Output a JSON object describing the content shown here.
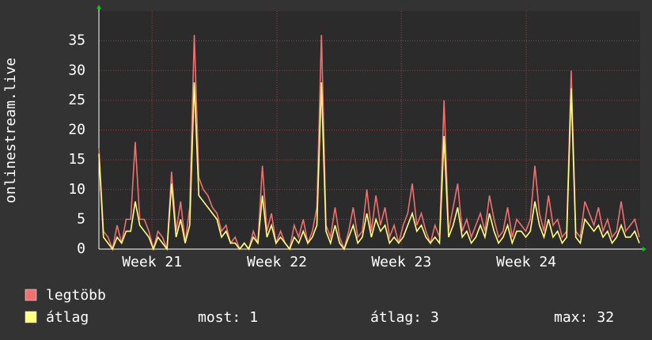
{
  "chart_data": {
    "type": "line",
    "y_label": "onlinestream.live",
    "x": [
      0,
      1,
      2,
      3,
      4,
      5,
      6,
      7,
      8,
      9,
      10,
      11,
      12,
      13,
      14,
      15,
      16,
      17,
      18,
      19,
      20,
      21,
      22,
      23,
      24,
      25,
      26,
      27,
      28,
      29,
      30,
      31,
      32,
      33,
      34,
      35,
      36,
      37,
      38,
      39,
      40,
      41,
      42,
      43,
      44,
      45,
      46,
      47,
      48,
      49,
      50,
      51,
      52,
      53,
      54,
      55,
      56,
      57,
      58,
      59,
      60,
      61,
      62,
      63,
      64,
      65,
      66,
      67,
      68,
      69,
      70,
      71,
      72,
      73,
      74,
      75,
      76,
      77,
      78,
      79,
      80,
      81,
      82,
      83,
      84,
      85,
      86,
      87,
      88,
      89,
      90,
      91,
      92,
      93,
      94,
      95,
      96,
      97,
      98,
      99,
      100,
      101,
      102,
      103,
      104,
      105,
      106,
      107,
      108,
      109,
      110,
      111,
      112,
      113,
      114,
      115,
      116,
      117,
      118,
      119
    ],
    "xlim": [
      0,
      119
    ],
    "xticks": [
      {
        "value": 11.7,
        "label": "Week 21"
      },
      {
        "value": 39.2,
        "label": "Week 22"
      },
      {
        "value": 66.6,
        "label": "Week 23"
      },
      {
        "value": 94.1,
        "label": "Week 24"
      }
    ],
    "ylim": [
      0,
      40
    ],
    "yticks": [
      0,
      5,
      10,
      15,
      20,
      25,
      30,
      35
    ],
    "grid": true,
    "series": [
      {
        "name": "legtöbb",
        "color": "#f07070",
        "values": [
          17,
          3,
          2,
          0,
          4,
          1,
          5,
          5,
          18,
          5,
          5,
          3,
          0,
          3,
          2,
          0,
          13,
          3,
          8,
          1,
          7,
          36,
          12,
          10,
          9,
          7,
          6,
          3,
          4,
          1,
          2,
          0,
          1,
          0,
          3,
          1,
          14,
          3,
          6,
          1,
          3,
          1,
          0,
          4,
          2,
          5,
          1,
          3,
          7,
          36,
          4,
          2,
          7,
          2,
          0,
          3,
          7,
          2,
          3,
          10,
          3,
          9,
          4,
          7,
          2,
          4,
          1,
          4,
          6,
          11,
          4,
          6,
          3,
          1,
          4,
          2,
          25,
          3,
          7,
          11,
          3,
          5,
          2,
          4,
          6,
          3,
          9,
          5,
          2,
          3,
          7,
          2,
          5,
          4,
          3,
          5,
          14,
          6,
          3,
          9,
          4,
          5,
          2,
          3,
          30,
          3,
          2,
          8,
          6,
          4,
          7,
          3,
          5,
          2,
          3,
          8,
          3,
          4,
          5,
          2
        ]
      },
      {
        "name": "átlag",
        "color": "#ffff80",
        "values": [
          16,
          2,
          1,
          0,
          2,
          1,
          3,
          3,
          8,
          4,
          3,
          2,
          0,
          2,
          1,
          0,
          11,
          2,
          5,
          1,
          4,
          28,
          9,
          8,
          7,
          6,
          5,
          2,
          3,
          1,
          1,
          0,
          1,
          0,
          2,
          1,
          9,
          2,
          4,
          1,
          2,
          1,
          0,
          2,
          1,
          3,
          1,
          2,
          4,
          28,
          3,
          1,
          4,
          1,
          0,
          2,
          4,
          1,
          2,
          6,
          2,
          5,
          3,
          4,
          1,
          2,
          1,
          2,
          4,
          6,
          3,
          4,
          2,
          1,
          2,
          1,
          19,
          2,
          4,
          7,
          2,
          3,
          1,
          2,
          4,
          2,
          6,
          3,
          1,
          2,
          4,
          1,
          3,
          3,
          2,
          3,
          8,
          4,
          2,
          5,
          2,
          3,
          1,
          2,
          27,
          2,
          1,
          5,
          4,
          3,
          4,
          2,
          3,
          1,
          2,
          4,
          2,
          2,
          3,
          1
        ]
      }
    ],
    "stats": [
      {
        "label": "most:",
        "value": 1
      },
      {
        "label": "átlag:",
        "value": 3
      },
      {
        "label": "max:",
        "value": 32
      }
    ]
  }
}
